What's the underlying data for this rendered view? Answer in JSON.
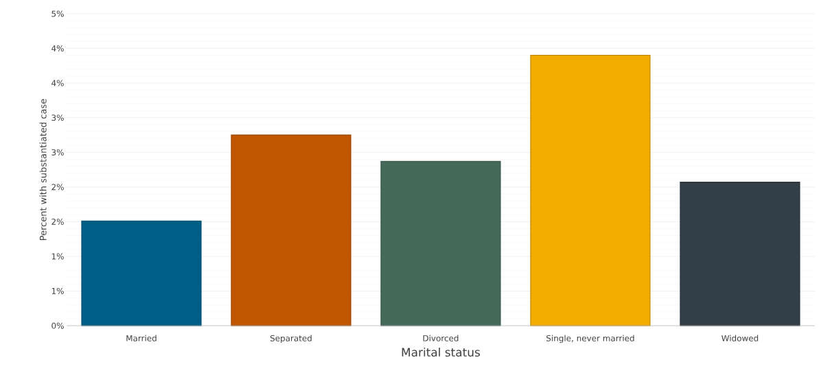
{
  "chart_data": {
    "type": "bar",
    "xlabel": "Marital status",
    "ylabel": "Percent with substantiated case",
    "categories": [
      "Married",
      "Separated",
      "Divorced",
      "Single, never married",
      "Widowed"
    ],
    "values": [
      1.51,
      2.75,
      2.37,
      3.9,
      2.07
    ],
    "colors": [
      "#005f87",
      "#c05600",
      "#456a5a",
      "#f2ab00",
      "#333f48"
    ],
    "ylim": [
      0,
      4.5
    ],
    "yticks": [
      {
        "value": 0,
        "label": "0%"
      },
      {
        "value": 0.5,
        "label": "1%"
      },
      {
        "value": 1,
        "label": "1%"
      },
      {
        "value": 1.5,
        "label": "2%"
      },
      {
        "value": 2,
        "label": "2%"
      },
      {
        "value": 2.5,
        "label": "3%"
      },
      {
        "value": 3,
        "label": "3%"
      },
      {
        "value": 3.5,
        "label": "4%"
      },
      {
        "value": 4,
        "label": "4%"
      },
      {
        "value": 4.5,
        "label": "5%"
      }
    ],
    "grid": "y"
  }
}
